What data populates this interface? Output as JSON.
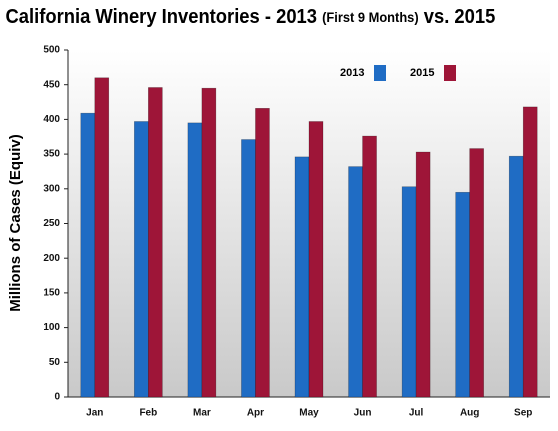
{
  "chart_data": {
    "type": "bar",
    "title": [
      "California Winery Inventories - 2013",
      "(First 9 Months)",
      "vs. 2015"
    ],
    "y_label": "Millions of Cases (Equiv)",
    "categories": [
      "Jan",
      "Feb",
      "Mar",
      "Apr",
      "May",
      "Jun",
      "Jul",
      "Aug",
      "Sep"
    ],
    "series": [
      {
        "name": "2013",
        "color": "#1f6cc4",
        "values": [
          409,
          397,
          395,
          371,
          346,
          332,
          303,
          295,
          347
        ]
      },
      {
        "name": "2015",
        "color": "#9e1538",
        "values": [
          460,
          446,
          445,
          416,
          397,
          376,
          353,
          358,
          418
        ]
      }
    ],
    "ylim": [
      0,
      500
    ],
    "yticks": [
      0,
      50,
      100,
      150,
      200,
      250,
      300,
      350,
      400,
      450,
      500
    ],
    "grid": false,
    "legend": "top-right"
  }
}
